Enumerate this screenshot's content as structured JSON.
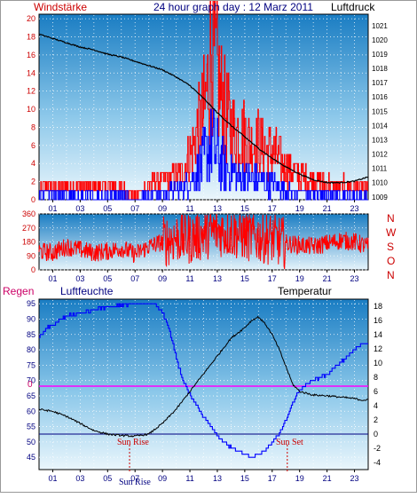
{
  "header": {
    "left_label": "Windstärke",
    "title": "24 hour graph day : 12 Marz 2011",
    "right_label": "Luftdruck"
  },
  "direction_labels": [
    "N",
    "W",
    "S",
    "O",
    "N"
  ],
  "bottom_panel": {
    "left_label": "Regen",
    "mid_label": "Luftfeuchte",
    "right_label": "Temperatur",
    "sun_rise_label": "Sun Rise",
    "sun_set_label": "Sun Set",
    "rain_zero_label": "0"
  },
  "colors": {
    "wind": "#ff0000",
    "gust": "#0000ff",
    "pressure": "#000000",
    "direction": "#ff0000",
    "humidity": "#0000ff",
    "temperature": "#000000",
    "rain_line": "#ff00ff",
    "sun_line": "#000080",
    "panel_top": "#1a7dc3",
    "panel_bottom": "#eaf6fc"
  },
  "chart_data": [
    {
      "type": "line",
      "x_ticks": [
        "01",
        "03",
        "05",
        "07",
        "09",
        "11",
        "13",
        "15",
        "17",
        "19",
        "21",
        "23"
      ],
      "left_axis": {
        "ticks": [
          "0",
          "2",
          "4",
          "6",
          "8",
          "10",
          "12",
          "14",
          "16",
          "18",
          "20"
        ],
        "range": [
          0,
          20.5
        ]
      },
      "right_axis": {
        "ticks": [
          "1009",
          "1010",
          "1011",
          "1012",
          "1013",
          "1014",
          "1015",
          "1016",
          "1017",
          "1018",
          "1019",
          "1020",
          "1021"
        ],
        "range": [
          1008.8,
          1021.8
        ]
      },
      "series": [
        {
          "axis": "right",
          "x": [
            0,
            1,
            2,
            3,
            4,
            5,
            6,
            7,
            8,
            9,
            10,
            11,
            12,
            13,
            14,
            15,
            16,
            17,
            18,
            19,
            20,
            21,
            22,
            23,
            24
          ],
          "values": [
            1020.4,
            1020.1,
            1019.8,
            1019.5,
            1019.3,
            1019.0,
            1018.8,
            1018.5,
            1018.2,
            1017.9,
            1017.4,
            1016.8,
            1015.9,
            1014.9,
            1014.0,
            1013.2,
            1012.4,
            1011.7,
            1011.1,
            1010.6,
            1010.2,
            1010.0,
            1010.0,
            1010.1,
            1010.4
          ]
        },
        {
          "axis": "left",
          "x": [
            0,
            1,
            2,
            3,
            4,
            5,
            6,
            7,
            8,
            9,
            10,
            10.5,
            11,
            11.5,
            12,
            12.3,
            12.6,
            12.9,
            13.2,
            13.5,
            14,
            14.5,
            15,
            15.5,
            16,
            16.5,
            17,
            17.5,
            18,
            19,
            20,
            21,
            22,
            23,
            24
          ],
          "values": [
            1.2,
            1.8,
            1.5,
            1.6,
            1.4,
            1.5,
            1.6,
            0.4,
            1.8,
            2.4,
            2.8,
            3.5,
            5.5,
            8,
            11,
            14,
            19,
            16,
            13,
            11,
            9,
            8,
            8,
            7,
            7,
            6,
            6,
            5,
            4,
            3,
            2.5,
            2,
            1.8,
            1.5,
            1.3
          ]
        },
        {
          "axis": "left",
          "x": [
            0,
            1,
            2,
            3,
            4,
            5,
            6,
            7,
            8,
            9,
            10,
            10.5,
            11,
            11.5,
            12,
            12.3,
            12.6,
            12.9,
            13.2,
            13.5,
            14,
            14.5,
            15,
            15.5,
            16,
            16.5,
            17,
            17.5,
            18,
            19,
            20,
            21,
            22,
            23,
            24
          ],
          "values": [
            0.6,
            0.9,
            0.5,
            0.4,
            0.5,
            0.5,
            0.6,
            0.2,
            0.6,
            0.9,
            1.2,
            1.5,
            2.0,
            3.5,
            5,
            6,
            7,
            6,
            5,
            4,
            3.5,
            3,
            3,
            2.5,
            2.5,
            2,
            2,
            1.5,
            1.2,
            0.9,
            0.7,
            0.6,
            0.6,
            0.5,
            0.4
          ]
        }
      ]
    },
    {
      "type": "line",
      "x_ticks": [
        "01",
        "03",
        "05",
        "07",
        "09",
        "11",
        "13",
        "15",
        "17",
        "19",
        "21",
        "23"
      ],
      "left_axis": {
        "ticks": [
          "0",
          "90",
          "180",
          "270",
          "360"
        ],
        "range": [
          0,
          360
        ]
      },
      "series": [
        {
          "x": [
            0,
            1,
            2,
            3,
            4,
            5,
            6,
            7,
            8,
            9,
            10,
            11,
            12,
            13,
            14,
            15,
            16,
            17,
            18,
            19,
            20,
            21,
            22,
            23,
            24
          ],
          "values": [
            120,
            110,
            150,
            130,
            110,
            120,
            140,
            100,
            150,
            180,
            210,
            200,
            230,
            250,
            240,
            220,
            210,
            200,
            170,
            160,
            150,
            170,
            190,
            180,
            150
          ]
        }
      ]
    },
    {
      "type": "line",
      "x_ticks": [
        "01",
        "03",
        "05",
        "07",
        "09",
        "11",
        "13",
        "15",
        "17",
        "19",
        "21",
        "23"
      ],
      "left_axis": {
        "ticks": [
          "45",
          "50",
          "55",
          "60",
          "65",
          "70",
          "75",
          "80",
          "85",
          "90",
          "95"
        ],
        "range": [
          41,
          96.5
        ]
      },
      "right_axis": {
        "ticks": [
          "-4",
          "-2",
          "0",
          "2",
          "4",
          "6",
          "8",
          "10",
          "12",
          "14",
          "16",
          "18"
        ],
        "range": [
          -5,
          19
        ]
      },
      "series": [
        {
          "axis": "left",
          "x": [
            0,
            0.5,
            1,
            2,
            3,
            4,
            5,
            6,
            7,
            8,
            8.5,
            9,
            9.5,
            10,
            10.5,
            11,
            12,
            13,
            14,
            15,
            15.5,
            16,
            16.5,
            17,
            17.5,
            18,
            18.5,
            19,
            19.5,
            20,
            21,
            22,
            22.5,
            23,
            23.5,
            24
          ],
          "values": [
            84,
            87,
            88,
            91,
            92,
            93,
            94,
            94.5,
            95,
            95,
            94.5,
            92,
            86,
            77,
            70,
            65,
            58,
            52,
            48,
            46,
            45,
            46,
            47,
            50,
            53,
            57,
            63,
            67,
            69,
            70,
            72,
            76,
            78,
            80,
            82,
            82
          ]
        },
        {
          "axis": "right",
          "x": [
            0,
            1,
            2,
            3,
            4,
            5,
            6,
            7,
            8,
            9,
            10,
            11,
            12,
            13,
            14,
            15,
            15.5,
            16,
            16.5,
            17,
            17.5,
            18,
            18.5,
            19,
            20,
            21,
            22,
            23,
            23.5,
            24
          ],
          "values": [
            3.5,
            3.2,
            2.5,
            1.5,
            0.5,
            0,
            -0.2,
            -0.3,
            0,
            1.5,
            3.5,
            6,
            8.5,
            11,
            13.5,
            15,
            16,
            16.5,
            15.5,
            14,
            12,
            9.5,
            7,
            6,
            5.5,
            5.4,
            5.2,
            5.0,
            4.8,
            4.8
          ]
        }
      ]
    }
  ]
}
